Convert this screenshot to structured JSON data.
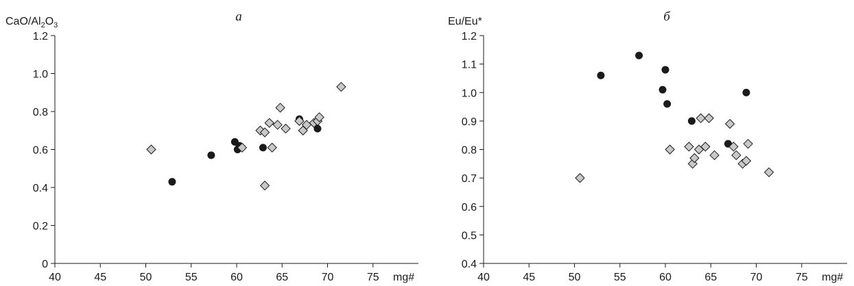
{
  "chart_data": [
    {
      "type": "scatter",
      "title": "a",
      "ylabel_main": "CaO/Al",
      "ylabel_sub1": "2",
      "ylabel_mid": "O",
      "ylabel_sub2": "3",
      "xlabel": "mg#",
      "xlim": [
        40,
        80
      ],
      "ylim": [
        0,
        1.2
      ],
      "x_ticks": [
        "40",
        "45",
        "50",
        "55",
        "60",
        "65",
        "70",
        "75"
      ],
      "y_ticks": [
        "0",
        "0.2",
        "0.4",
        "0.6",
        "0.8",
        "1.0",
        "1.2"
      ],
      "series": [
        {
          "marker": "circle",
          "color": "#1a1a1a",
          "points": [
            [
              52.9,
              0.43
            ],
            [
              57.2,
              0.57
            ],
            [
              59.8,
              0.64
            ],
            [
              60.1,
              0.6
            ],
            [
              60.3,
              0.62
            ],
            [
              62.9,
              0.61
            ],
            [
              66.9,
              0.76
            ],
            [
              68.9,
              0.71
            ]
          ]
        },
        {
          "marker": "diamond",
          "color": "#c8c8c8",
          "points": [
            [
              50.6,
              0.6
            ],
            [
              60.6,
              0.61
            ],
            [
              62.6,
              0.7
            ],
            [
              63.1,
              0.69
            ],
            [
              63.1,
              0.41
            ],
            [
              63.6,
              0.74
            ],
            [
              63.9,
              0.61
            ],
            [
              64.5,
              0.73
            ],
            [
              64.8,
              0.82
            ],
            [
              65.4,
              0.71
            ],
            [
              66.9,
              0.75
            ],
            [
              67.3,
              0.7
            ],
            [
              67.7,
              0.73
            ],
            [
              68.5,
              0.74
            ],
            [
              68.9,
              0.75
            ],
            [
              69.1,
              0.77
            ],
            [
              71.5,
              0.93
            ]
          ]
        }
      ]
    },
    {
      "type": "scatter",
      "title": "б",
      "ylabel": "Eu/Eu*",
      "xlabel": "mg#",
      "xlim": [
        40,
        80
      ],
      "ylim": [
        0.4,
        1.2
      ],
      "x_ticks": [
        "40",
        "45",
        "50",
        "55",
        "60",
        "65",
        "70",
        "75"
      ],
      "y_ticks": [
        "0.4",
        "0.5",
        "0.6",
        "0.7",
        "0.8",
        "0.9",
        "1.0",
        "1.1",
        "1.2"
      ],
      "series": [
        {
          "marker": "circle",
          "color": "#1a1a1a",
          "points": [
            [
              52.9,
              1.06
            ],
            [
              57.1,
              1.13
            ],
            [
              59.7,
              1.01
            ],
            [
              60.0,
              1.08
            ],
            [
              60.2,
              0.96
            ],
            [
              62.9,
              0.9
            ],
            [
              66.9,
              0.82
            ],
            [
              68.9,
              1.0
            ]
          ]
        },
        {
          "marker": "diamond",
          "color": "#c8c8c8",
          "points": [
            [
              50.6,
              0.7
            ],
            [
              60.5,
              0.8
            ],
            [
              62.6,
              0.81
            ],
            [
              63.0,
              0.75
            ],
            [
              63.2,
              0.77
            ],
            [
              63.7,
              0.8
            ],
            [
              63.9,
              0.91
            ],
            [
              64.4,
              0.81
            ],
            [
              64.8,
              0.91
            ],
            [
              65.4,
              0.78
            ],
            [
              67.1,
              0.89
            ],
            [
              67.5,
              0.81
            ],
            [
              67.8,
              0.78
            ],
            [
              68.5,
              0.75
            ],
            [
              68.9,
              0.76
            ],
            [
              69.1,
              0.82
            ],
            [
              71.4,
              0.72
            ]
          ]
        }
      ]
    }
  ]
}
